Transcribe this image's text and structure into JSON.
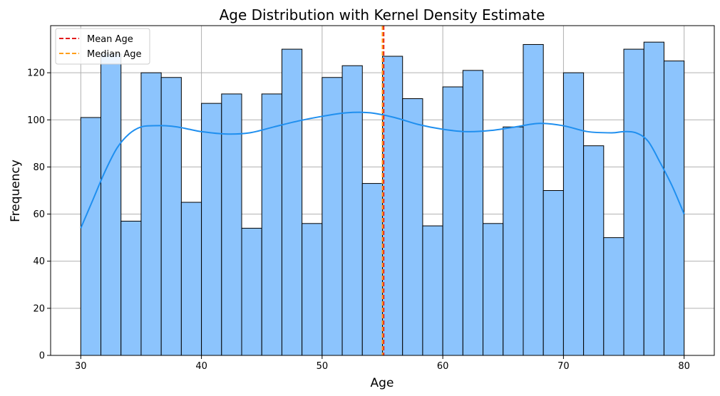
{
  "chart_data": {
    "type": "bar",
    "title": "Age Distribution with Kernel Density Estimate",
    "xlabel": "Age",
    "ylabel": "Frequency",
    "xlim": [
      27.5,
      82.5
    ],
    "ylim": [
      0,
      140
    ],
    "xticks": [
      30,
      40,
      50,
      60,
      70,
      80
    ],
    "yticks": [
      0,
      20,
      40,
      60,
      80,
      100,
      120
    ],
    "grid": true,
    "legend_position": "top-left",
    "bin_edges": [
      30,
      31.667,
      33.333,
      35,
      36.667,
      38.333,
      40,
      41.667,
      43.333,
      45,
      46.667,
      48.333,
      50,
      51.667,
      53.333,
      55,
      56.667,
      58.333,
      60,
      61.667,
      63.333,
      65,
      66.667,
      68.333,
      70,
      71.667,
      73.333,
      75,
      76.667,
      78.333,
      80
    ],
    "values": [
      101,
      128,
      57,
      120,
      118,
      65,
      107,
      111,
      54,
      111,
      130,
      56,
      118,
      123,
      73,
      127,
      109,
      55,
      114,
      121,
      56,
      97,
      132,
      70,
      120,
      89,
      50,
      130,
      133,
      125
    ],
    "kde": {
      "x": [
        30,
        31,
        32,
        33,
        34,
        35,
        36,
        37,
        38,
        39,
        40,
        42,
        44,
        46,
        48,
        50,
        52,
        54,
        56,
        58,
        60,
        62,
        64,
        66,
        68,
        70,
        72,
        74,
        75,
        76,
        77,
        78,
        79,
        80
      ],
      "y": [
        54,
        66,
        78,
        88,
        94,
        97,
        97.5,
        97.5,
        97,
        96,
        95,
        94,
        94.5,
        97,
        99.5,
        101.5,
        103,
        103,
        101,
        98,
        96,
        95,
        95.5,
        97,
        98.5,
        97.5,
        95,
        94.5,
        95,
        94.5,
        91,
        82,
        72,
        60
      ]
    },
    "lines": [
      {
        "name": "Mean Age",
        "x": 55.1,
        "color": "#e31a1c",
        "style": "dashed"
      },
      {
        "name": "Median Age",
        "x": 55.0,
        "color": "#ff9f1a",
        "style": "dashed"
      }
    ],
    "colors": {
      "bar_fill": "#8cc4fd",
      "bar_edge": "#000000",
      "kde_line": "#1f8fef",
      "grid": "#b0b0b0"
    }
  }
}
